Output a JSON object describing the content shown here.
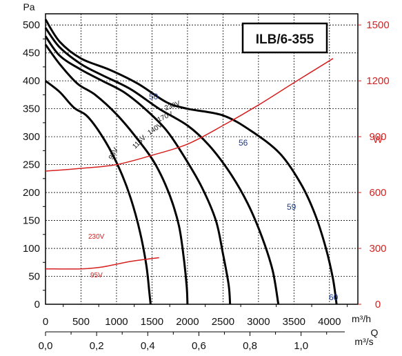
{
  "chart_data": {
    "type": "line",
    "title": "ILB/6-355",
    "y_axis": {
      "label": "Pa",
      "range": [
        0,
        520
      ],
      "ticks": [
        "0",
        "50",
        "100",
        "150",
        "200",
        "250",
        "300",
        "350",
        "400",
        "450",
        "500"
      ]
    },
    "y2_axis": {
      "label": "W",
      "color": "#d61f1f",
      "range": [
        0,
        1560
      ],
      "ticks": [
        "0",
        "300",
        "600",
        "900",
        "1200",
        "1500"
      ]
    },
    "x_axis": {
      "unit": "m³/h",
      "range": [
        0,
        4400
      ],
      "ticks": [
        "0",
        "500",
        "1000",
        "1500",
        "2000",
        "2500",
        "3000",
        "3500",
        "4000"
      ]
    },
    "x2_axis": {
      "label": "Q",
      "unit": "m³/s",
      "ticks": [
        "0,0",
        "0,2",
        "0,4",
        "0,6",
        "0,8",
        "1,0"
      ]
    },
    "grid": true,
    "pressure_series": [
      {
        "name": "230V",
        "points": [
          [
            0,
            510
          ],
          [
            200,
            470
          ],
          [
            500,
            440
          ],
          [
            900,
            420
          ],
          [
            1300,
            395
          ],
          [
            1700,
            362
          ],
          [
            2000,
            350
          ],
          [
            2500,
            338
          ],
          [
            2900,
            310
          ],
          [
            3300,
            270
          ],
          [
            3600,
            215
          ],
          [
            3800,
            160
          ],
          [
            3950,
            100
          ],
          [
            4050,
            45
          ],
          [
            4100,
            0
          ]
        ]
      },
      {
        "name": "170V",
        "points": [
          [
            0,
            495
          ],
          [
            200,
            460
          ],
          [
            500,
            430
          ],
          [
            800,
            410
          ],
          [
            1200,
            385
          ],
          [
            1600,
            350
          ],
          [
            2000,
            320
          ],
          [
            2300,
            285
          ],
          [
            2600,
            235
          ],
          [
            2850,
            180
          ],
          [
            3050,
            120
          ],
          [
            3200,
            60
          ],
          [
            3280,
            0
          ]
        ]
      },
      {
        "name": "140V",
        "points": [
          [
            0,
            480
          ],
          [
            200,
            445
          ],
          [
            500,
            420
          ],
          [
            800,
            400
          ],
          [
            1100,
            380
          ],
          [
            1400,
            350
          ],
          [
            1700,
            312
          ],
          [
            1950,
            265
          ],
          [
            2200,
            210
          ],
          [
            2400,
            150
          ],
          [
            2500,
            90
          ],
          [
            2580,
            35
          ],
          [
            2600,
            0
          ]
        ]
      },
      {
        "name": "115V",
        "points": [
          [
            0,
            465
          ],
          [
            200,
            430
          ],
          [
            450,
            395
          ],
          [
            700,
            375
          ],
          [
            1000,
            340
          ],
          [
            1300,
            295
          ],
          [
            1550,
            250
          ],
          [
            1750,
            195
          ],
          [
            1880,
            140
          ],
          [
            1950,
            80
          ],
          [
            1990,
            30
          ],
          [
            2000,
            0
          ]
        ]
      },
      {
        "name": "95V",
        "points": [
          [
            0,
            400
          ],
          [
            200,
            380
          ],
          [
            400,
            352
          ],
          [
            600,
            335
          ],
          [
            850,
            290
          ],
          [
            1050,
            240
          ],
          [
            1200,
            190
          ],
          [
            1330,
            130
          ],
          [
            1420,
            70
          ],
          [
            1460,
            25
          ],
          [
            1480,
            0
          ]
        ]
      }
    ],
    "power_series": [
      {
        "name": "230V",
        "points": [
          [
            0,
            715
          ],
          [
            500,
            730
          ],
          [
            1000,
            750
          ],
          [
            1500,
            800
          ],
          [
            2000,
            860
          ],
          [
            2500,
            960
          ],
          [
            3000,
            1070
          ],
          [
            3500,
            1190
          ],
          [
            4050,
            1320
          ]
        ]
      },
      {
        "name": "95V",
        "points": [
          [
            0,
            190
          ],
          [
            500,
            190
          ],
          [
            800,
            200
          ],
          [
            1200,
            230
          ],
          [
            1600,
            250
          ]
        ]
      }
    ],
    "noise_labels": [
      "50",
      "56",
      "59",
      "60"
    ]
  }
}
